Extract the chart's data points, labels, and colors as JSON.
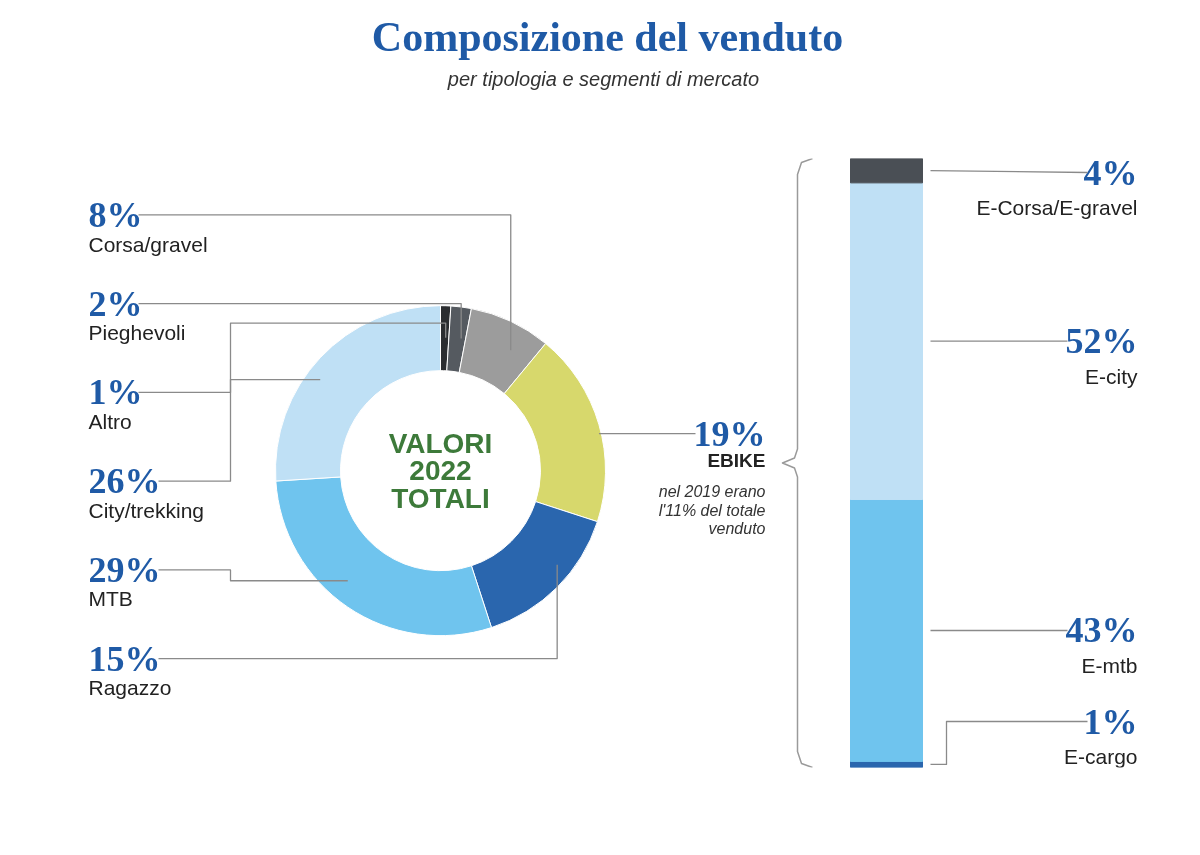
{
  "chart_data": [
    {
      "type": "donut",
      "title": "Composizione del venduto",
      "subtitle": "per tipologia e segmenti di mercato",
      "categories": [
        "Altro",
        "Pieghevoli",
        "Corsa/gravel",
        "EBIKE",
        "Ragazzo",
        "MTB",
        "City/trekking"
      ],
      "values": [
        1,
        2,
        8,
        19,
        15,
        29,
        26
      ],
      "value_labels": [
        "1%",
        "2%",
        "8%",
        "19%",
        "15%",
        "29%",
        "26%"
      ],
      "colors": [
        "#2b2d30",
        "#555a60",
        "#9c9c9c",
        "#d7d86c",
        "#2a66ae",
        "#6fc4ee",
        "#bfe0f5"
      ],
      "annotations": [
        "VALORI 2022 TOTALI",
        "nel 2019 erano l'11% del totale venduto"
      ]
    },
    {
      "type": "bar",
      "stacked": true,
      "categories": [
        null
      ],
      "series": [
        {
          "name": "E-cargo",
          "color": "#2a66ae",
          "values": [
            1
          ],
          "value_labels": [
            "1%"
          ]
        },
        {
          "name": "E-mtb",
          "color": "#6fc4ee",
          "values": [
            43
          ],
          "value_labels": [
            "43%"
          ]
        },
        {
          "name": "E-city",
          "color": "#bfe0f5",
          "values": [
            52
          ],
          "value_labels": [
            "52%"
          ]
        },
        {
          "name": "E-Corsa/E-gravel",
          "color": "#4a4f55",
          "values": [
            4
          ],
          "value_labels": [
            "4%"
          ]
        }
      ]
    }
  ]
}
